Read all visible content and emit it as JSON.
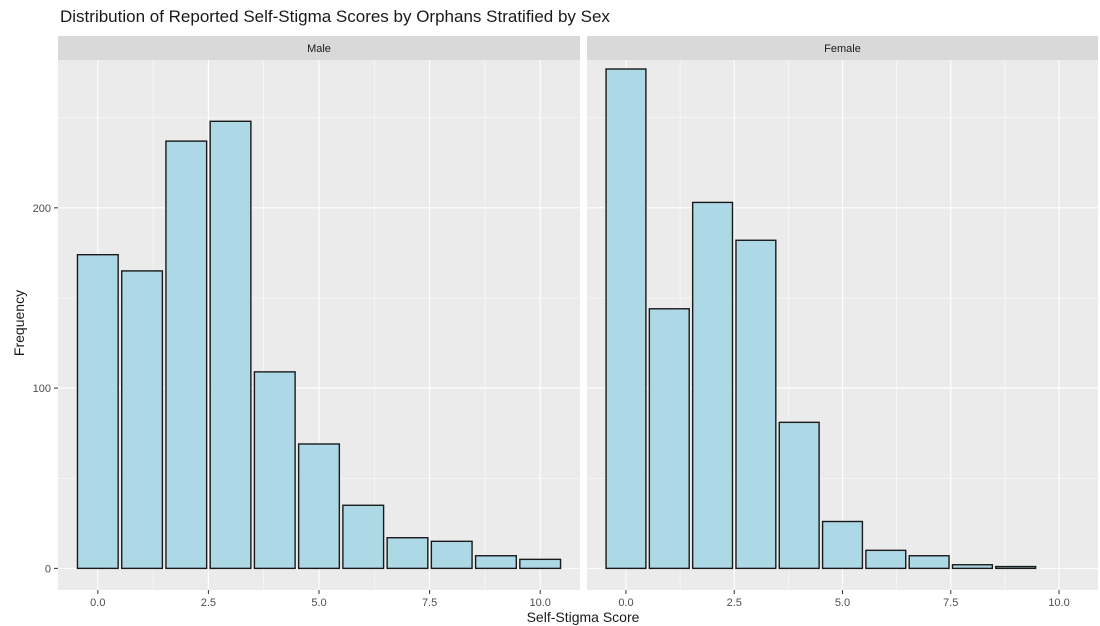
{
  "chart_data": {
    "type": "bar",
    "title": "Distribution of Reported Self-Stigma Scores by Orphans Stratified by Sex",
    "xlabel": "Self-Stigma Score",
    "ylabel": "Frequency",
    "xlim": [
      -0.9,
      10.9
    ],
    "ylim": [
      -12,
      282
    ],
    "x_ticks": [
      0,
      2.5,
      5,
      7.5,
      10
    ],
    "x_tick_labels": [
      "0.0",
      "2.5",
      "5.0",
      "7.5",
      "10.0"
    ],
    "y_ticks": [
      0,
      100,
      200
    ],
    "y_tick_labels": [
      "0",
      "100",
      "200"
    ],
    "grid": true,
    "bar_width": 0.92,
    "bar_fill": "#add8e6",
    "bar_stroke": "#1a1a1a",
    "panel_background": "#ebebeb",
    "strip_background": "#d9d9d9",
    "panels": [
      {
        "label": "Male",
        "x": [
          0,
          1,
          2,
          3,
          4,
          5,
          6,
          7,
          8,
          9,
          10
        ],
        "values": [
          174,
          165,
          237,
          248,
          109,
          69,
          35,
          17,
          15,
          7,
          5
        ]
      },
      {
        "label": "Female",
        "x": [
          0,
          1,
          2,
          3,
          4,
          5,
          6,
          7,
          8,
          9
        ],
        "values": [
          277,
          144,
          203,
          182,
          81,
          26,
          10,
          7,
          2,
          1
        ]
      }
    ]
  }
}
